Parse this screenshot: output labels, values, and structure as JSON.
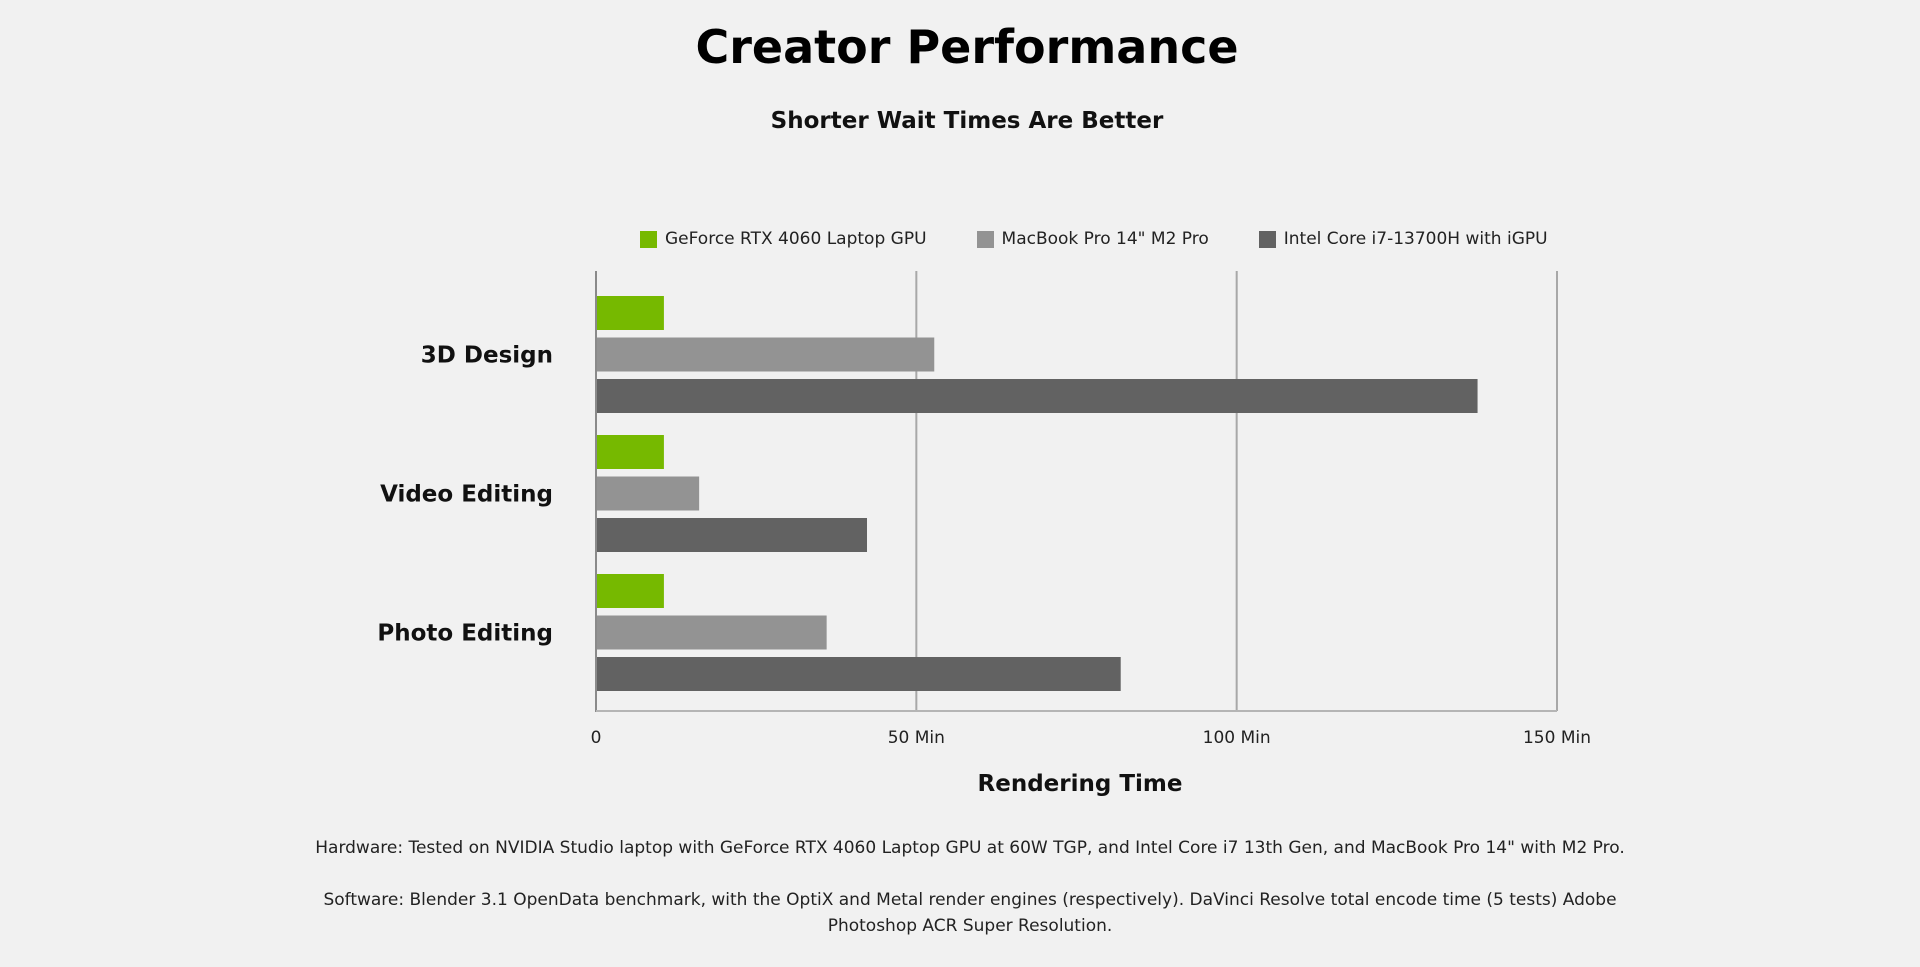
{
  "title": "Creator Performance",
  "subtitle": "Shorter Wait Times Are Better",
  "footnotes": {
    "hardware": "Hardware: Tested on NVIDIA Studio laptop with GeForce RTX 4060 Laptop GPU at 60W TGP, and Intel Core i7 13th Gen, and MacBook Pro 14\" with M2 Pro.",
    "software": "Software: Blender 3.1 OpenData benchmark, with the OptiX and Metal render engines (respectively). DaVinci Resolve total encode time (5 tests) Adobe Photoshop ACR Super Resolution."
  },
  "chart_data": {
    "type": "bar",
    "orientation": "horizontal",
    "title": "Creator Performance",
    "subtitle": "Shorter Wait Times Are Better",
    "categories": [
      "3D Design",
      "Video Editing",
      "Photo Editing"
    ],
    "series": [
      {
        "name": "GeForce RTX 4060 Laptop GPU",
        "color": "#76b900",
        "values": [
          10.6,
          10.6,
          10.6
        ]
      },
      {
        "name": "MacBook Pro 14\" M2 Pro",
        "color": "#939393",
        "values": [
          52.8,
          16.1,
          36.0
        ]
      },
      {
        "name": "Intel Core i7-13700H with iGPU",
        "color": "#626262",
        "values": [
          137.6,
          42.3,
          81.9
        ]
      }
    ],
    "xlabel": "Rendering Time",
    "ylabel": "",
    "xlim": [
      0,
      150
    ],
    "ticks": [
      {
        "value": 0,
        "label": "0"
      },
      {
        "value": 50,
        "label": "50 Min"
      },
      {
        "value": 100,
        "label": "100 Min"
      },
      {
        "value": 150,
        "label": "150 Min"
      }
    ],
    "grid": true,
    "legend": "top"
  }
}
